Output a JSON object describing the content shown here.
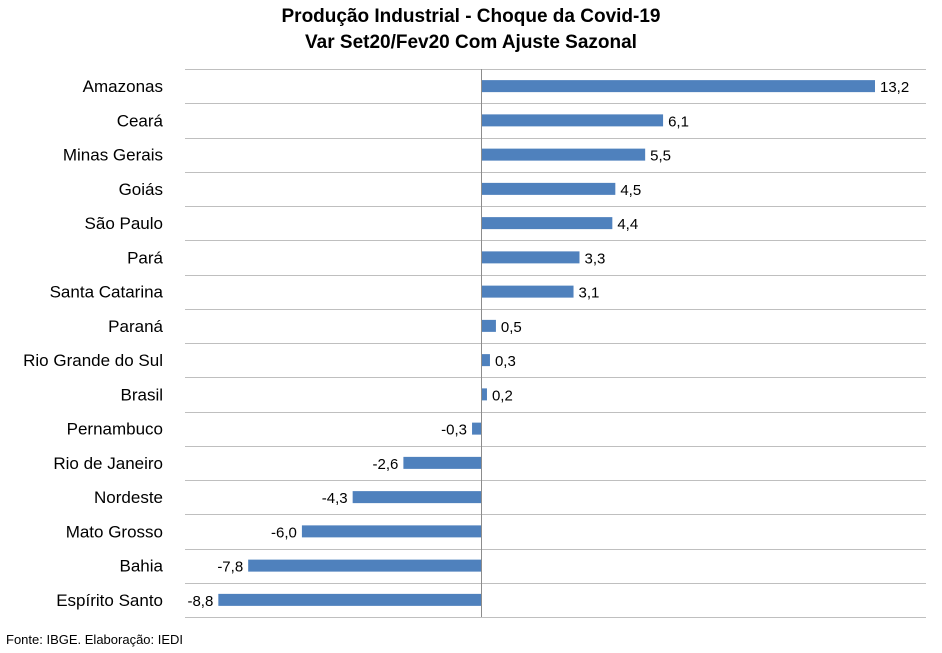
{
  "chart_data": {
    "type": "bar",
    "orientation": "horizontal",
    "title": "Produção Industrial - Choque da Covid-19",
    "subtitle": "Var Set20/Fev20 Com Ajuste Sazonal",
    "categories": [
      "Amazonas",
      "Ceará",
      "Minas Gerais",
      "Goiás",
      "São Paulo",
      "Pará",
      "Santa Catarina",
      "Paraná",
      "Rio Grande do Sul",
      "Brasil",
      "Pernambuco",
      "Rio de Janeiro",
      "Nordeste",
      "Mato Grosso",
      "Bahia",
      "Espírito Santo"
    ],
    "values": [
      13.2,
      6.1,
      5.5,
      4.5,
      4.4,
      3.3,
      3.1,
      0.5,
      0.3,
      0.2,
      -0.3,
      -2.6,
      -4.3,
      -6.0,
      -7.8,
      -8.8
    ],
    "value_labels": [
      "13,2",
      "6,1",
      "5,5",
      "4,5",
      "4,4",
      "3,3",
      "3,1",
      "0,5",
      "0,3",
      "0,2",
      "-0,3",
      "-2,6",
      "-4,3",
      "-6,0",
      "-7,8",
      "-8,8"
    ],
    "xlim": [
      -10,
      15
    ],
    "bar_color": "#4f81bd",
    "grid": "horizontal separators",
    "legend": "none"
  },
  "source": "Fonte: IBGE. Elaboração: IEDI"
}
